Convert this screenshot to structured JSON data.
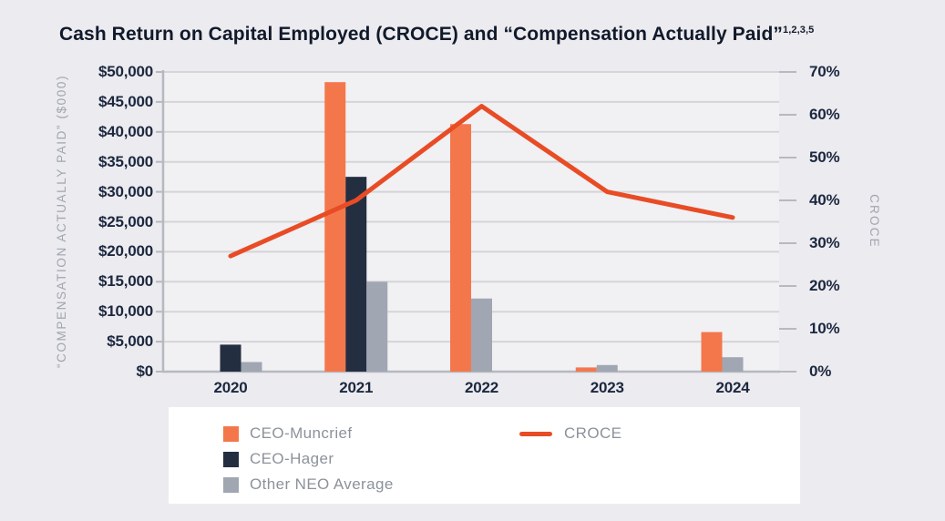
{
  "title": {
    "text": "Cash Return on Capital Employed (CROCE) and “Compensation Actually Paid”",
    "superscript": "1,2,3,5"
  },
  "chart_data": {
    "type": "combo-bar-line",
    "categories": [
      "2020",
      "2021",
      "2022",
      "2023",
      "2024"
    ],
    "bar_series": [
      {
        "name": "CEO-Muncrief",
        "color": "#F4774C",
        "values": [
          null,
          48300,
          41300,
          700,
          6600
        ]
      },
      {
        "name": "CEO-Hager",
        "color": "#242E41",
        "values": [
          4500,
          32500,
          null,
          null,
          null
        ]
      },
      {
        "name": "Other NEO Average",
        "color": "#A0A7B2",
        "values": [
          1600,
          15000,
          12200,
          1100,
          2400
        ]
      }
    ],
    "line_series": {
      "name": "CROCE",
      "color": "#E84C25",
      "values_percent": [
        27,
        40,
        62,
        42,
        36
      ]
    },
    "left_axis": {
      "title": "“COMPENSATION ACTUALLY PAID” ($000)",
      "min": 0,
      "max": 50000,
      "step": 5000,
      "tick_labels": [
        "$0",
        "$5,000",
        "$10,000",
        "$15,000",
        "$20,000",
        "$25,000",
        "$30,000",
        "$35,000",
        "$40,000",
        "$45,000",
        "$50,000"
      ]
    },
    "right_axis": {
      "title": "CROCE",
      "min": 0,
      "max": 70,
      "step": 10,
      "tick_labels": [
        "0%",
        "10%",
        "20%",
        "30%",
        "40%",
        "50%",
        "60%",
        "70%"
      ]
    },
    "grid": true,
    "legend_position": "bottom",
    "legend": [
      {
        "type": "swatch",
        "label": "CEO-Muncrief",
        "color": "#F4774C"
      },
      {
        "type": "swatch",
        "label": "CEO-Hager",
        "color": "#242E41"
      },
      {
        "type": "swatch",
        "label": "Other NEO Average",
        "color": "#A0A7B2"
      },
      {
        "type": "line",
        "label": "CROCE",
        "color": "#E84C25"
      }
    ]
  },
  "colors": {
    "page_background": "#ECEBEF",
    "plot_background": "#F1F0F3",
    "gridline": "#D5D4D8",
    "axis_line": "#B6B9C0",
    "tick_label": "#1C2840",
    "axis_title": "#A1A5AE",
    "legend_text": "#8C929B",
    "title_text": "#111A2B",
    "legend_background": "#FFFFFF"
  }
}
